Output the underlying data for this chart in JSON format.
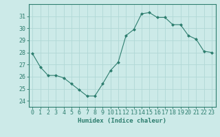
{
  "x": [
    0,
    1,
    2,
    3,
    4,
    5,
    6,
    7,
    8,
    9,
    10,
    11,
    12,
    13,
    14,
    15,
    16,
    17,
    18,
    19,
    20,
    21,
    22,
    23
  ],
  "y": [
    27.9,
    26.8,
    26.1,
    26.1,
    25.9,
    25.4,
    24.9,
    24.4,
    24.4,
    25.4,
    26.5,
    27.2,
    29.4,
    29.9,
    31.2,
    31.3,
    30.9,
    30.9,
    30.3,
    30.3,
    29.4,
    29.1,
    28.1,
    28.0
  ],
  "line_color": "#2d7d6e",
  "marker": "D",
  "marker_size": 2.0,
  "bg_color": "#cceae8",
  "grid_color": "#b0d8d5",
  "xlabel": "Humidex (Indice chaleur)",
  "ylim": [
    23.5,
    32.0
  ],
  "xlim": [
    -0.5,
    23.5
  ],
  "yticks": [
    24,
    25,
    26,
    27,
    28,
    29,
    30,
    31
  ],
  "xticks": [
    0,
    1,
    2,
    3,
    4,
    5,
    6,
    7,
    8,
    9,
    10,
    11,
    12,
    13,
    14,
    15,
    16,
    17,
    18,
    19,
    20,
    21,
    22,
    23
  ],
  "xlabel_fontsize": 6.5,
  "tick_fontsize": 6.0,
  "axis_color": "#2d7d6e",
  "spine_color": "#2d7d6e"
}
